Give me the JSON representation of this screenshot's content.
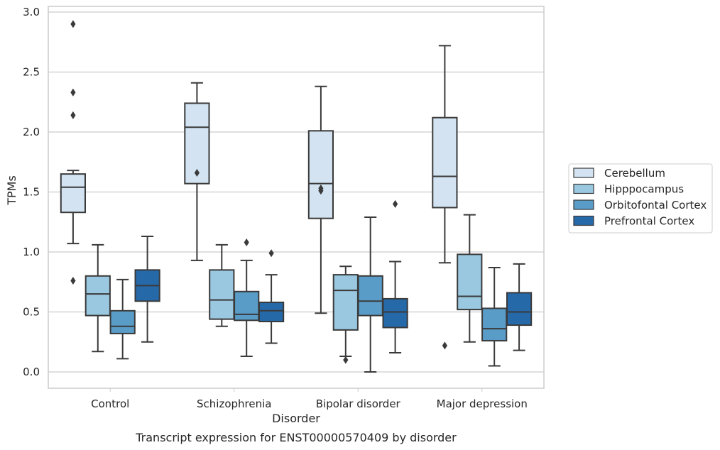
{
  "chart_data": {
    "type": "box",
    "title": "",
    "caption": "Transcript expression for ENST00000570409 by disorder",
    "xlabel": "Disorder",
    "ylabel": "TPMs",
    "ylim": [
      -0.14,
      3.05
    ],
    "yticks": [
      0.0,
      0.5,
      1.0,
      1.5,
      2.0,
      2.5,
      3.0
    ],
    "ytick_labels": [
      "0.0",
      "0.5",
      "1.0",
      "1.5",
      "2.0",
      "2.5",
      "3.0"
    ],
    "grid": "horizontal",
    "legend_position": "right-center",
    "categories": [
      "Control",
      "Schizophrenia",
      "Bipolar disorder",
      "Major depression"
    ],
    "series": [
      {
        "name": "Cerebellum",
        "color": "#d3e3f1",
        "boxes": [
          {
            "whislo": 1.07,
            "q1": 1.33,
            "med": 1.54,
            "q3": 1.65,
            "whishi": 1.68,
            "fliers": [
              2.9,
              2.33,
              2.14,
              0.76
            ]
          },
          {
            "whislo": 0.93,
            "q1": 1.57,
            "med": 2.04,
            "q3": 2.24,
            "whishi": 2.41,
            "fliers": [
              1.66
            ]
          },
          {
            "whislo": 0.49,
            "q1": 1.28,
            "med": 1.57,
            "q3": 2.01,
            "whishi": 2.38,
            "fliers": [
              1.53,
              1.51
            ]
          },
          {
            "whislo": 0.91,
            "q1": 1.37,
            "med": 1.63,
            "q3": 2.12,
            "whishi": 2.72,
            "fliers": [
              0.22
            ]
          }
        ]
      },
      {
        "name": "Hipppocampus",
        "color": "#9ac8e0",
        "boxes": [
          {
            "whislo": 0.17,
            "q1": 0.47,
            "med": 0.65,
            "q3": 0.8,
            "whishi": 1.06,
            "fliers": []
          },
          {
            "whislo": 0.38,
            "q1": 0.44,
            "med": 0.6,
            "q3": 0.85,
            "whishi": 1.06,
            "fliers": []
          },
          {
            "whislo": 0.13,
            "q1": 0.35,
            "med": 0.68,
            "q3": 0.81,
            "whishi": 0.88,
            "fliers": [
              0.1
            ]
          },
          {
            "whislo": 0.25,
            "q1": 0.52,
            "med": 0.63,
            "q3": 0.98,
            "whishi": 1.31,
            "fliers": []
          }
        ]
      },
      {
        "name": "Orbitofontal Cortex",
        "color": "#5a9cc8",
        "boxes": [
          {
            "whislo": 0.11,
            "q1": 0.32,
            "med": 0.38,
            "q3": 0.51,
            "whishi": 0.77,
            "fliers": []
          },
          {
            "whislo": 0.13,
            "q1": 0.43,
            "med": 0.48,
            "q3": 0.67,
            "whishi": 0.93,
            "fliers": [
              1.08
            ]
          },
          {
            "whislo": 0.0,
            "q1": 0.47,
            "med": 0.59,
            "q3": 0.8,
            "whishi": 1.29,
            "fliers": []
          },
          {
            "whislo": 0.05,
            "q1": 0.26,
            "med": 0.36,
            "q3": 0.53,
            "whishi": 0.87,
            "fliers": []
          }
        ]
      },
      {
        "name": "Prefrontal Cortex",
        "color": "#2669a8",
        "boxes": [
          {
            "whislo": 0.25,
            "q1": 0.59,
            "med": 0.72,
            "q3": 0.85,
            "whishi": 1.13,
            "fliers": []
          },
          {
            "whislo": 0.24,
            "q1": 0.42,
            "med": 0.51,
            "q3": 0.58,
            "whishi": 0.81,
            "fliers": [
              0.99
            ]
          },
          {
            "whislo": 0.16,
            "q1": 0.37,
            "med": 0.5,
            "q3": 0.61,
            "whishi": 0.92,
            "fliers": [
              1.4
            ]
          },
          {
            "whislo": 0.18,
            "q1": 0.39,
            "med": 0.5,
            "q3": 0.66,
            "whishi": 0.9,
            "fliers": []
          }
        ]
      }
    ]
  }
}
